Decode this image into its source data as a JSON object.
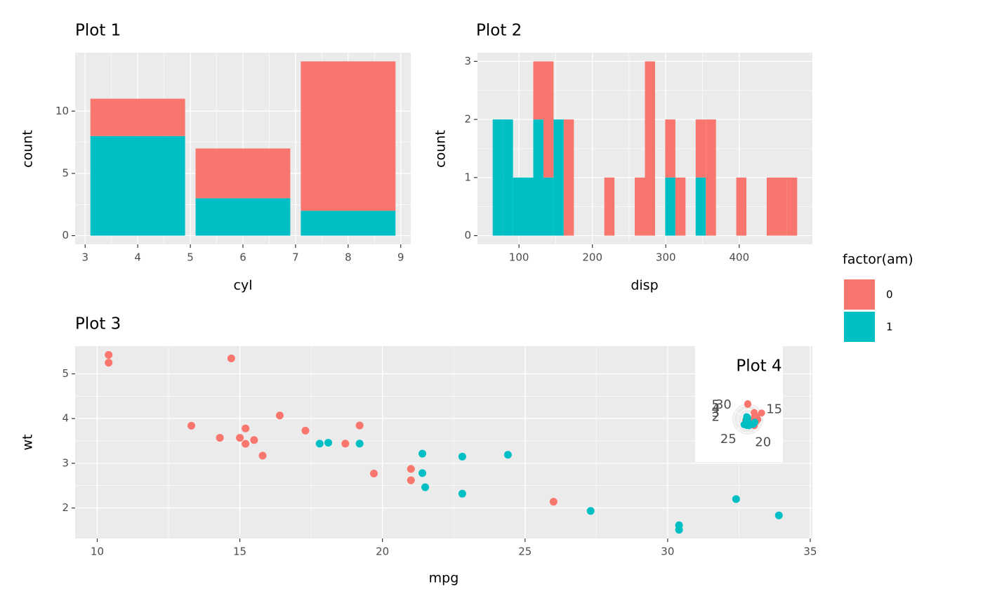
{
  "chart_data": [
    {
      "type": "bar",
      "title": "Plot 1",
      "x_label": "cyl",
      "y_label": "count",
      "legend_title": "factor(am)",
      "x": [
        4,
        6,
        8
      ],
      "series": [
        {
          "name": "0",
          "color": "#F8766D",
          "values": [
            3,
            4,
            12
          ]
        },
        {
          "name": "1",
          "color": "#00BFC4",
          "values": [
            8,
            3,
            2
          ]
        }
      ],
      "xlim": [
        2.81,
        9.19
      ],
      "xticks": [
        3,
        4,
        5,
        6,
        7,
        8,
        9
      ],
      "ylim": [
        -0.7,
        14.7
      ],
      "yticks": [
        0,
        5,
        10
      ],
      "stacked": true,
      "grid": true
    },
    {
      "type": "histogram",
      "title": "Plot 2",
      "x_label": "disp",
      "y_label": "count",
      "bins": [
        64.19,
        78.01,
        91.84,
        105.66,
        119.49,
        133.31,
        147.13,
        160.96,
        174.78,
        188.61,
        202.43,
        216.25,
        230.08,
        243.9,
        257.72,
        271.55,
        285.37,
        299.2,
        313.02,
        326.84,
        340.67,
        354.49,
        368.32,
        382.14,
        395.96,
        409.79,
        423.61,
        437.44,
        451.26,
        465.08,
        478.91
      ],
      "series": [
        {
          "color": "#F8766D",
          "values": [
            0,
            0,
            0,
            0,
            1,
            2,
            0,
            2,
            0,
            0,
            0,
            1,
            0,
            0,
            1,
            3,
            0,
            1,
            1,
            0,
            1,
            2,
            0,
            0,
            1,
            0,
            0,
            1,
            1,
            1
          ]
        },
        {
          "color": "#00BFC4",
          "values": [
            2,
            2,
            1,
            1,
            2,
            1,
            2,
            0,
            0,
            0,
            0,
            0,
            0,
            0,
            0,
            0,
            0,
            1,
            0,
            0,
            1,
            0,
            0,
            0,
            0,
            0,
            0,
            0,
            0,
            0
          ]
        }
      ],
      "xlim": [
        43.45,
        499.65
      ],
      "xticks": [
        100,
        200,
        300,
        400
      ],
      "ylim": [
        -0.15,
        3.15
      ],
      "yticks": [
        0,
        1,
        2,
        3
      ],
      "stacked": true,
      "grid": true
    },
    {
      "type": "scatter",
      "title": "Plot 3",
      "x_label": "mpg",
      "y_label": "wt",
      "series": [
        {
          "color": "#F8766D",
          "x": [
            10.4,
            10.4,
            14.7,
            13.3,
            14.3,
            15,
            15.2,
            15.2,
            15.5,
            15.8,
            16.4,
            17.3,
            18.7,
            19.2,
            19.7,
            21,
            21,
            26
          ],
          "y": [
            5.424,
            5.25,
            5.345,
            3.84,
            3.57,
            3.57,
            3.78,
            3.435,
            3.52,
            3.17,
            4.07,
            3.73,
            3.44,
            3.845,
            2.77,
            2.875,
            2.62,
            2.14
          ]
        },
        {
          "color": "#00BFC4",
          "x": [
            17.8,
            18.1,
            19.2,
            21.4,
            21.4,
            21.5,
            22.8,
            22.8,
            24.4,
            27.3,
            30.4,
            30.4,
            32.4,
            33.9
          ],
          "y": [
            3.44,
            3.46,
            3.44,
            3.215,
            2.78,
            2.465,
            3.15,
            2.32,
            3.19,
            1.935,
            1.615,
            1.513,
            2.2,
            1.835
          ]
        }
      ],
      "xlim": [
        9.225,
        35.075
      ],
      "xticks": [
        10,
        15,
        20,
        25,
        30,
        35
      ],
      "ylim": [
        1.318,
        5.62
      ],
      "yticks": [
        2,
        3,
        4,
        5
      ],
      "grid": true
    },
    {
      "type": "polar",
      "title": "Plot 4",
      "series": [
        {
          "color": "#F8766D",
          "x": [
            10.4,
            10.4,
            14.7,
            13.3,
            14.3,
            15,
            15.2,
            15.2,
            15.5,
            15.8,
            16.4,
            17.3,
            18.7,
            19.2,
            19.7,
            21,
            21,
            26
          ],
          "y": [
            5.424,
            5.25,
            5.345,
            3.84,
            3.57,
            3.57,
            3.78,
            3.435,
            3.52,
            3.17,
            4.07,
            3.73,
            3.44,
            3.845,
            2.77,
            2.875,
            2.62,
            2.14
          ]
        },
        {
          "color": "#00BFC4",
          "x": [
            17.8,
            18.1,
            19.2,
            21.4,
            21.4,
            21.5,
            22.8,
            22.8,
            24.4,
            27.3,
            30.4,
            30.4,
            32.4,
            33.9
          ],
          "y": [
            3.44,
            3.46,
            3.44,
            3.215,
            2.78,
            2.465,
            3.15,
            2.32,
            3.19,
            1.935,
            1.615,
            1.513,
            2.2,
            1.835
          ]
        }
      ],
      "xlim": [
        10.4,
        33.9
      ],
      "xticks": [
        15,
        20,
        25,
        30
      ],
      "ylim": [
        1.513,
        5.424
      ],
      "yticks": [
        2,
        3,
        4,
        5
      ]
    }
  ]
}
